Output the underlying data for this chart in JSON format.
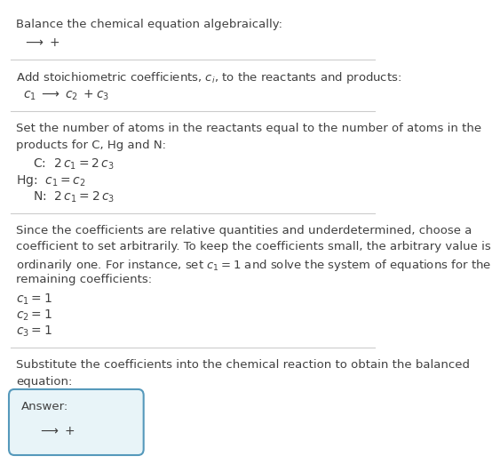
{
  "bg_color": "#ffffff",
  "text_color": "#404040",
  "line_color": "#cccccc",
  "answer_box_color": "#e8f4f8",
  "answer_box_border": "#5599bb",
  "section1_title": "Balance the chemical equation algebraically:",
  "section2_title": "Add stoichiometric coefficients, $c_i$, to the reactants and products:",
  "section3_title_line1": "Set the number of atoms in the reactants equal to the number of atoms in the",
  "section3_title_line2": "products for C, Hg and N:",
  "section4_title_line1": "Since the coefficients are relative quantities and underdetermined, choose a",
  "section4_title_line2": "coefficient to set arbitrarily. To keep the coefficients small, the arbitrary value is",
  "section4_title_line3": "ordinarily one. For instance, set $c_1 = 1$ and solve the system of equations for the",
  "section4_title_line4": "remaining coefficients:",
  "section5_title_line1": "Substitute the coefficients into the chemical reaction to obtain the balanced",
  "section5_title_line2": "equation:",
  "answer_label": "Answer:"
}
